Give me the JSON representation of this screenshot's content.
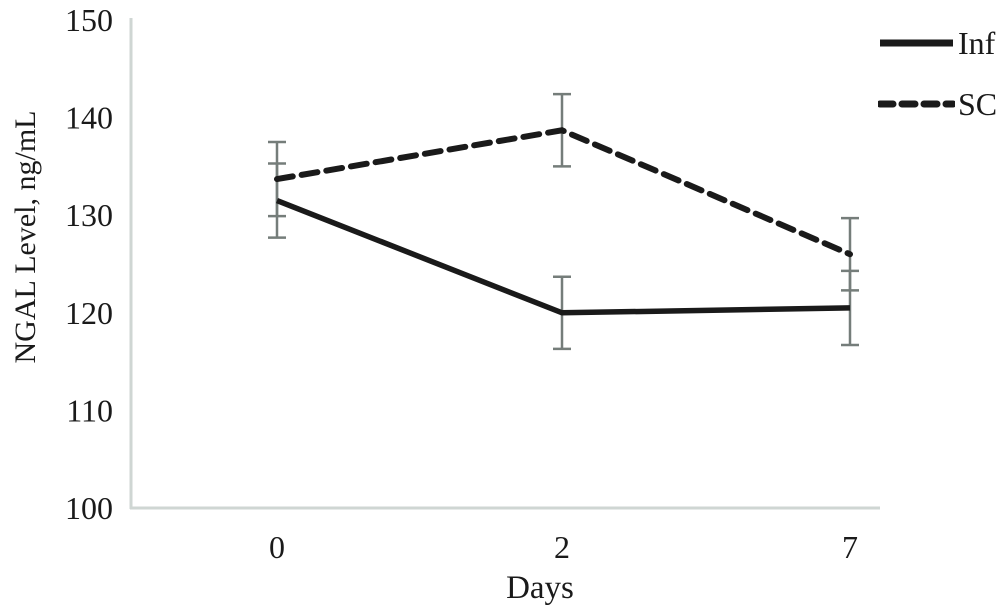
{
  "chart_data": {
    "type": "line",
    "title": "",
    "xlabel": "Days",
    "ylabel": "NGAL Level, ng/mL",
    "categories": [
      "0",
      "2",
      "7"
    ],
    "ylim": [
      100,
      150
    ],
    "y_ticks": [
      100,
      110,
      120,
      130,
      140,
      150
    ],
    "grid": false,
    "legend_position": "top-right-outside",
    "series": [
      {
        "name": "Inf",
        "line_style": "solid",
        "color": "#1a1a1a",
        "values": [
          131.5,
          120.0,
          120.5
        ],
        "errors": [
          3.8,
          3.7,
          3.8
        ]
      },
      {
        "name": "SC",
        "line_style": "dashed",
        "color": "#1a1a1a",
        "values": [
          133.7,
          138.7,
          126.0
        ],
        "errors": [
          3.8,
          3.7,
          3.7
        ]
      }
    ],
    "error_bar_color": "#757d7a",
    "axis_color": "#cfd6d3",
    "text_color": "#1a1a1a",
    "background": "#ffffff"
  }
}
